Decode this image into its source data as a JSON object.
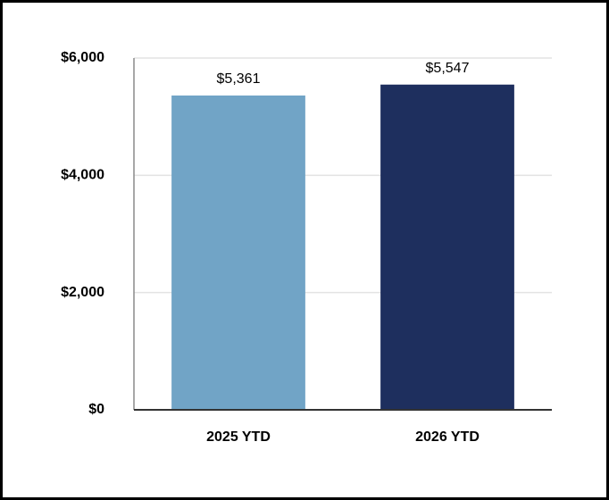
{
  "chart_data": {
    "type": "bar",
    "categories": [
      "2025 YTD",
      "2026 YTD"
    ],
    "values": [
      5361,
      5547
    ],
    "value_labels": [
      "$5,361",
      "$5,547"
    ],
    "colors": [
      "#71a4c6",
      "#1e2f5e"
    ],
    "ylim": [
      0,
      6000
    ],
    "yticks": [
      {
        "value": 0,
        "label": "$0"
      },
      {
        "value": 2000,
        "label": "$2,000"
      },
      {
        "value": 4000,
        "label": "$4,000"
      },
      {
        "value": 6000,
        "label": "$6,000"
      }
    ],
    "grid": true
  }
}
